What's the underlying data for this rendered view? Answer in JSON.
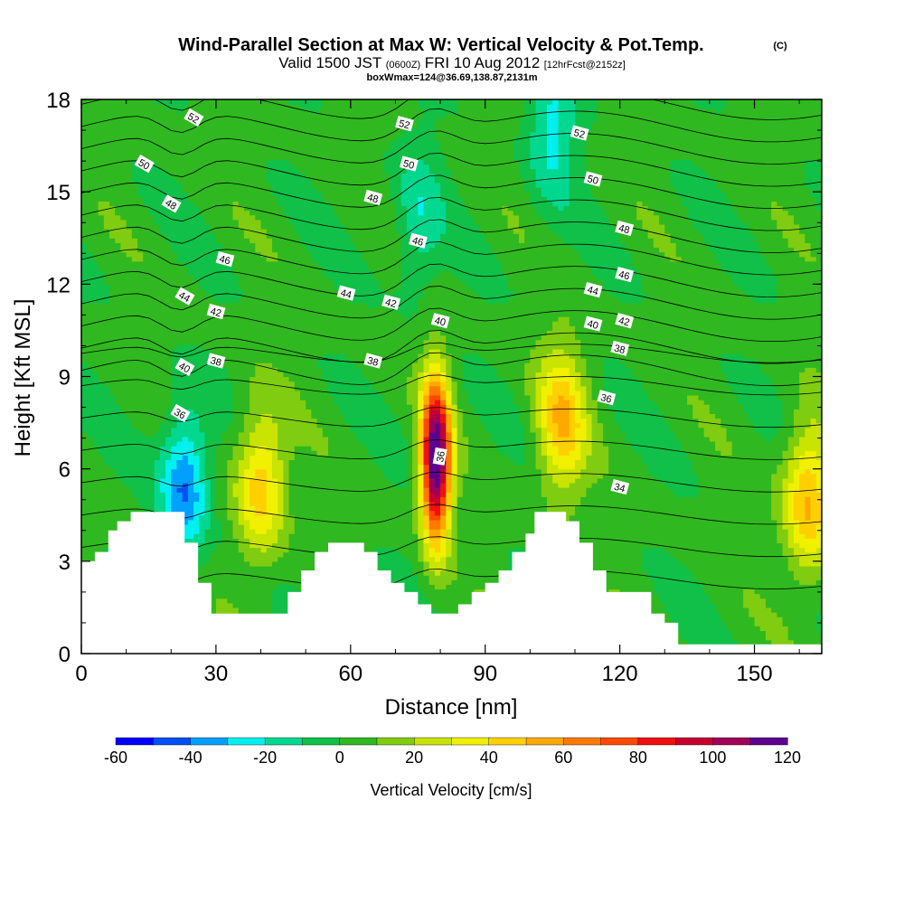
{
  "header": {
    "title": "Wind-Parallel Section at Max W: Vertical Velocity & Pot.Temp.",
    "copyright": "(C)",
    "valid_a": "Valid 1500 JST",
    "valid_utc": "(0600Z)",
    "valid_b": "FRI 10 Aug 2012",
    "forecast": "[12hrFcst@2152z]",
    "box_info": "boxWmax=124@36.69,138.87,2131m"
  },
  "chart_data": {
    "type": "heatmap",
    "xlabel": "Distance [nm]",
    "ylabel": "Height [Kft MSL]",
    "xlim": [
      0,
      165
    ],
    "ylim": [
      0,
      18
    ],
    "x_ticks": [
      0,
      30,
      60,
      90,
      120,
      150
    ],
    "y_ticks": [
      0,
      3,
      6,
      9,
      12,
      15,
      18
    ],
    "colorbar": {
      "label": "Vertical Velocity [cm/s]",
      "levels": [
        -60,
        -50,
        -40,
        -30,
        -20,
        -10,
        0,
        10,
        20,
        30,
        40,
        50,
        60,
        70,
        80,
        90,
        100,
        110,
        120
      ],
      "tick_labels": [
        "-60",
        "-40",
        "-20",
        "0",
        "20",
        "40",
        "60",
        "80",
        "100",
        "120"
      ],
      "colors": [
        "#0000ff",
        "#0050f5",
        "#00a0ff",
        "#00f0f0",
        "#00d890",
        "#10c048",
        "#30b820",
        "#80cc10",
        "#c8e400",
        "#f0f000",
        "#ffd000",
        "#ffa800",
        "#ff7800",
        "#ff4800",
        "#f01010",
        "#c80030",
        "#a00058",
        "#5c0090"
      ]
    },
    "vertical_velocity_features": [
      {
        "x": 40,
        "z": 5.5,
        "peak": 45,
        "note": "updraft"
      },
      {
        "x": 79,
        "z": 6.3,
        "peak": 124,
        "note": "max updraft"
      },
      {
        "x": 107,
        "z": 7.5,
        "peak": 45,
        "note": "updraft"
      },
      {
        "x": 162,
        "z": 5.0,
        "peak": 50,
        "note": "updraft"
      },
      {
        "x": 23,
        "z": 5.5,
        "peak": -45,
        "note": "downdraft"
      },
      {
        "x": 75,
        "z": 14,
        "peak": -20,
        "note": "downdraft"
      },
      {
        "x": 105,
        "z": 17,
        "peak": -25,
        "note": "downdraft"
      }
    ],
    "theta_contours": [
      {
        "value": 34,
        "label_x": 120,
        "label_z": 5.4
      },
      {
        "value": 36,
        "label_x": 22,
        "label_z": 7.8
      },
      {
        "value": 36,
        "label_x": 80,
        "label_z": 6.4
      },
      {
        "value": 36,
        "label_x": 117,
        "label_z": 8.3
      },
      {
        "value": 38,
        "label_x": 30,
        "label_z": 9.5
      },
      {
        "value": 38,
        "label_x": 65,
        "label_z": 9.5
      },
      {
        "value": 38,
        "label_x": 120,
        "label_z": 9.9
      },
      {
        "value": 40,
        "label_x": 23,
        "label_z": 9.3
      },
      {
        "value": 40,
        "label_x": 80,
        "label_z": 10.8
      },
      {
        "value": 40,
        "label_x": 114,
        "label_z": 10.7
      },
      {
        "value": 42,
        "label_x": 30,
        "label_z": 11.1
      },
      {
        "value": 42,
        "label_x": 69,
        "label_z": 11.4
      },
      {
        "value": 42,
        "label_x": 121,
        "label_z": 10.8
      },
      {
        "value": 44,
        "label_x": 23,
        "label_z": 11.6
      },
      {
        "value": 44,
        "label_x": 59,
        "label_z": 11.7
      },
      {
        "value": 44,
        "label_x": 114,
        "label_z": 11.8
      },
      {
        "value": 46,
        "label_x": 32,
        "label_z": 12.8
      },
      {
        "value": 46,
        "label_x": 75,
        "label_z": 13.4
      },
      {
        "value": 46,
        "label_x": 121,
        "label_z": 12.3
      },
      {
        "value": 48,
        "label_x": 20,
        "label_z": 14.6
      },
      {
        "value": 48,
        "label_x": 65,
        "label_z": 14.8
      },
      {
        "value": 48,
        "label_x": 121,
        "label_z": 13.8
      },
      {
        "value": 50,
        "label_x": 14,
        "label_z": 15.9
      },
      {
        "value": 50,
        "label_x": 73,
        "label_z": 15.9
      },
      {
        "value": 50,
        "label_x": 114,
        "label_z": 15.4
      },
      {
        "value": 52,
        "label_x": 25,
        "label_z": 17.4
      },
      {
        "value": 52,
        "label_x": 72,
        "label_z": 17.2
      },
      {
        "value": 52,
        "label_x": 111,
        "label_z": 16.9
      }
    ],
    "terrain_kft": [
      [
        0,
        3.0
      ],
      [
        3,
        3.0
      ],
      [
        3,
        3.3
      ],
      [
        6,
        3.3
      ],
      [
        6,
        4.0
      ],
      [
        8,
        4.0
      ],
      [
        8,
        4.3
      ],
      [
        11,
        4.3
      ],
      [
        11,
        4.6
      ],
      [
        23,
        4.6
      ],
      [
        23,
        3.6
      ],
      [
        26,
        3.6
      ],
      [
        26,
        2.3
      ],
      [
        29,
        2.3
      ],
      [
        29,
        1.3
      ],
      [
        46,
        1.3
      ],
      [
        46,
        2.0
      ],
      [
        49,
        2.0
      ],
      [
        49,
        2.7
      ],
      [
        52,
        2.7
      ],
      [
        52,
        3.3
      ],
      [
        55,
        3.3
      ],
      [
        55,
        3.6
      ],
      [
        63,
        3.6
      ],
      [
        63,
        3.3
      ],
      [
        66,
        3.3
      ],
      [
        66,
        2.7
      ],
      [
        69,
        2.7
      ],
      [
        69,
        2.3
      ],
      [
        72,
        2.3
      ],
      [
        72,
        2.0
      ],
      [
        75,
        2.0
      ],
      [
        75,
        1.6
      ],
      [
        78,
        1.6
      ],
      [
        78,
        1.3
      ],
      [
        84,
        1.3
      ],
      [
        84,
        1.6
      ],
      [
        87,
        1.6
      ],
      [
        87,
        2.0
      ],
      [
        90,
        2.0
      ],
      [
        90,
        2.3
      ],
      [
        93,
        2.3
      ],
      [
        93,
        2.7
      ],
      [
        96,
        2.7
      ],
      [
        96,
        3.3
      ],
      [
        99,
        3.3
      ],
      [
        99,
        3.9
      ],
      [
        101,
        3.9
      ],
      [
        101,
        4.6
      ],
      [
        108,
        4.6
      ],
      [
        108,
        4.3
      ],
      [
        111,
        4.3
      ],
      [
        111,
        3.6
      ],
      [
        114,
        3.6
      ],
      [
        114,
        2.7
      ],
      [
        117,
        2.7
      ],
      [
        117,
        2.0
      ],
      [
        127,
        2.0
      ],
      [
        127,
        1.3
      ],
      [
        130,
        1.3
      ],
      [
        130,
        1.0
      ],
      [
        133,
        1.0
      ],
      [
        133,
        0.3
      ],
      [
        165,
        0.3
      ]
    ]
  }
}
